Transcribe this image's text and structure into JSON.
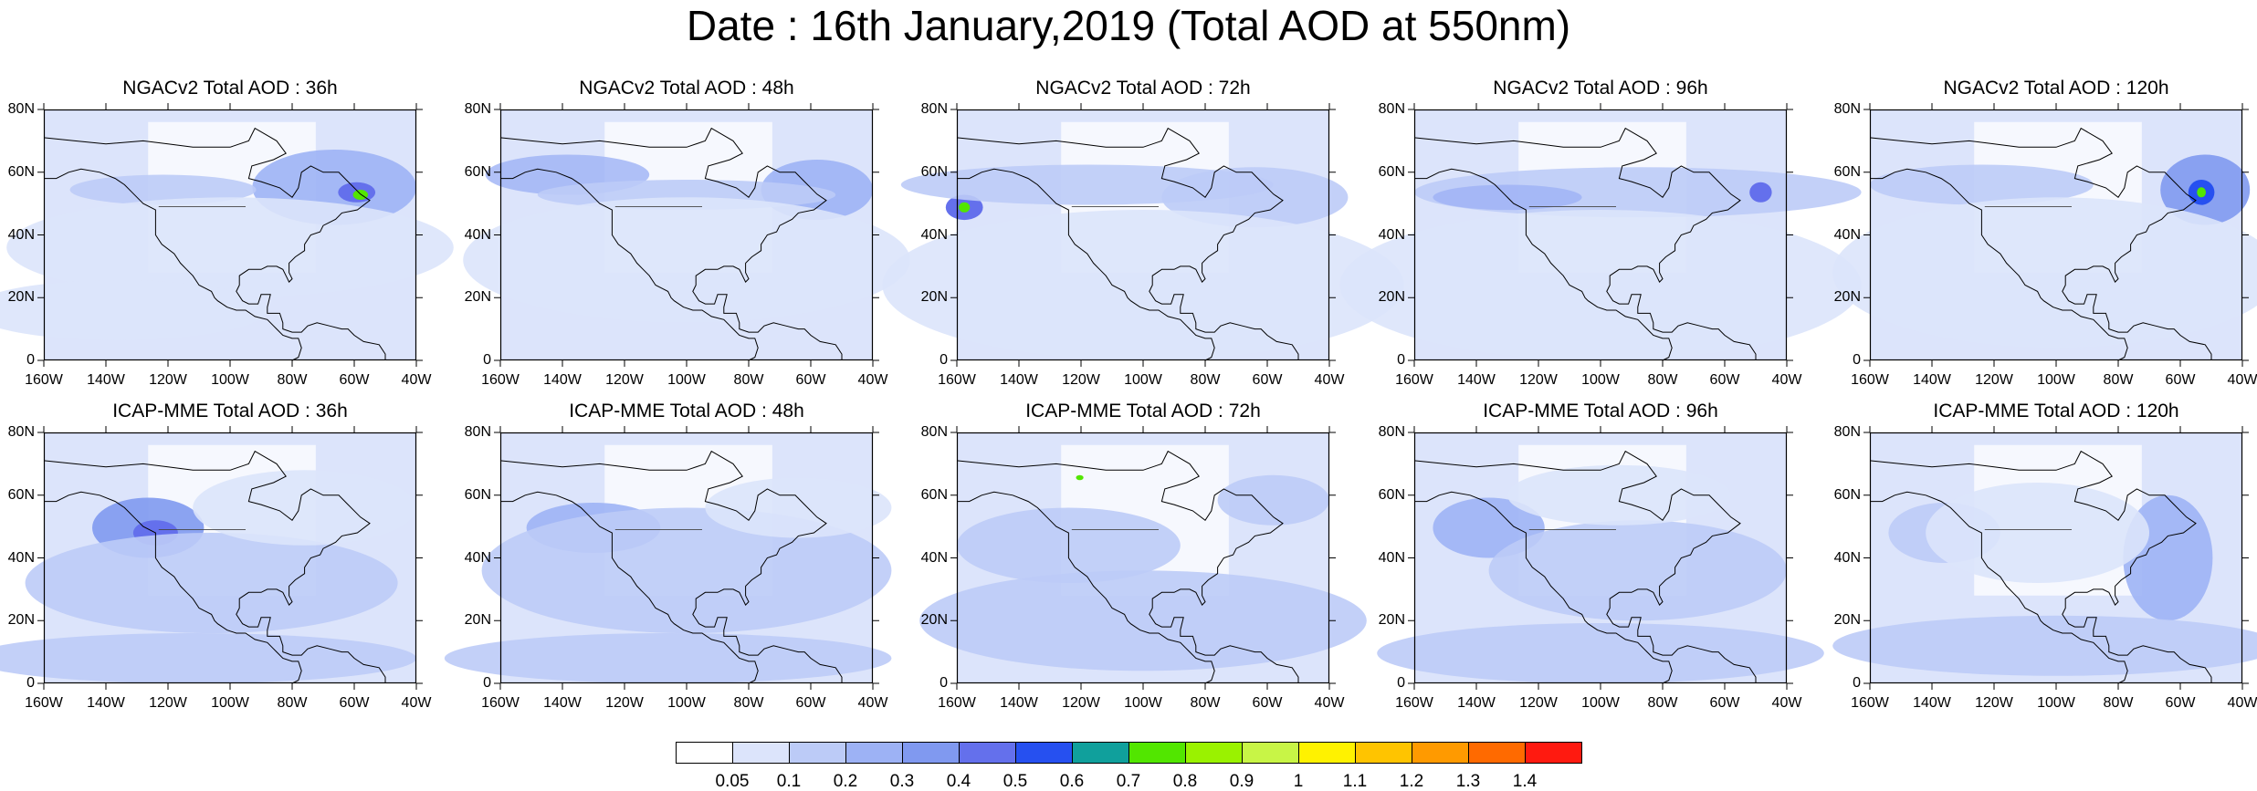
{
  "title": "Date : 16th January,2019 (Total AOD at 550nm)",
  "map_axes": {
    "lat_ticks": [
      "80N",
      "60N",
      "40N",
      "20N",
      "0"
    ],
    "lon_ticks": [
      "160W",
      "140W",
      "120W",
      "100W",
      "80W",
      "60W",
      "40W"
    ]
  },
  "panels": [
    {
      "title": "NGACv2 Total AOD : 36h",
      "model": "NGACv2",
      "lead": "36h"
    },
    {
      "title": "NGACv2 Total AOD : 48h",
      "model": "NGACv2",
      "lead": "48h"
    },
    {
      "title": "NGACv2 Total AOD : 72h",
      "model": "NGACv2",
      "lead": "72h"
    },
    {
      "title": "NGACv2 Total AOD : 96h",
      "model": "NGACv2",
      "lead": "96h"
    },
    {
      "title": "NGACv2 Total AOD : 120h",
      "model": "NGACv2",
      "lead": "120h"
    },
    {
      "title": "ICAP-MME Total AOD : 36h",
      "model": "ICAP-MME",
      "lead": "36h"
    },
    {
      "title": "ICAP-MME Total AOD : 48h",
      "model": "ICAP-MME",
      "lead": "48h"
    },
    {
      "title": "ICAP-MME Total AOD : 72h",
      "model": "ICAP-MME",
      "lead": "72h"
    },
    {
      "title": "ICAP-MME Total AOD : 96h",
      "model": "ICAP-MME",
      "lead": "96h"
    },
    {
      "title": "ICAP-MME Total AOD : 120h",
      "model": "ICAP-MME",
      "lead": "120h"
    }
  ],
  "colorbar": {
    "labels": [
      "0.05",
      "0.1",
      "0.2",
      "0.3",
      "0.4",
      "0.5",
      "0.6",
      "0.7",
      "0.8",
      "0.9",
      "1",
      "1.1",
      "1.2",
      "1.3",
      "1.4"
    ],
    "colors": [
      "#ffffff",
      "#dce4fb",
      "#bccbf7",
      "#9db2f5",
      "#8099f0",
      "#6470ec",
      "#2650f0",
      "#10a09c",
      "#52e600",
      "#9af200",
      "#c8f546",
      "#fff200",
      "#ffc400",
      "#ff9a00",
      "#ff6a00",
      "#ff1a10"
    ]
  }
}
